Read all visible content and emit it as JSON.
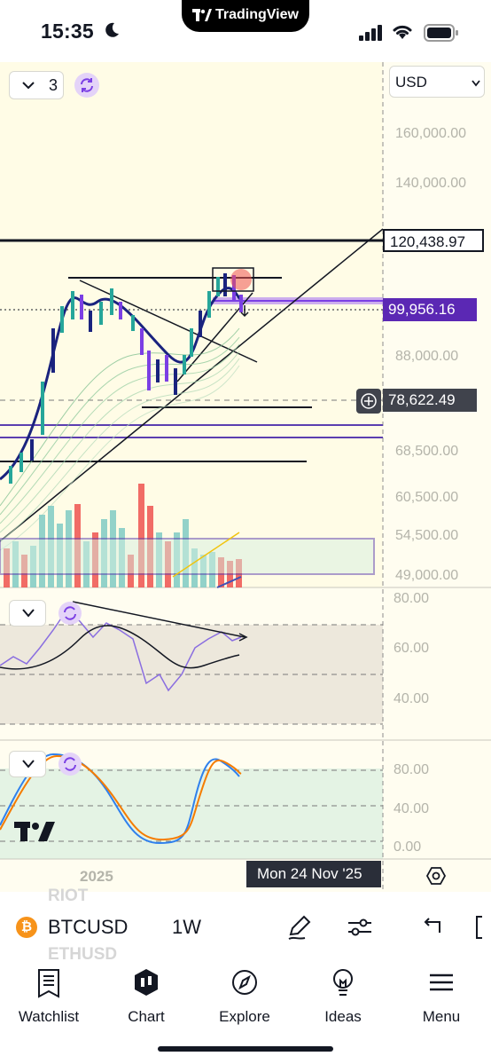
{
  "status_bar": {
    "time": "15:35"
  },
  "island": {
    "label": "TradingView"
  },
  "toolbar": {
    "interval_count": "3",
    "currency": "USD"
  },
  "price_axis": {
    "ticks": [
      "160,000.00",
      "140,000.00",
      "88,000.00",
      "68,500.00",
      "60,500.00",
      "54,500.00",
      "49,000.00"
    ],
    "resistance_label": "120,438.97",
    "last_price_label": "99,956.16",
    "crosshair_label": "78,622.49"
  },
  "rsi_pane": {
    "ticks": [
      "80.00",
      "60.00",
      "40.00"
    ]
  },
  "stoch_pane": {
    "ticks": [
      "80.00",
      "40.00",
      "0.00"
    ]
  },
  "time_axis": {
    "year": "2025",
    "cursor_date": "Mon 24 Nov '25"
  },
  "symbol_bar": {
    "ghost_above": "RIOT",
    "ghost_below": "ETHUSD",
    "coin_glyph": "₿",
    "symbol": "BTCUSD",
    "interval": "1W"
  },
  "nav": {
    "watchlist": "Watchlist",
    "chart": "Chart",
    "explore": "Explore",
    "ideas": "Ideas",
    "menu": "Menu"
  },
  "colors": {
    "chart_bg": "#fffdf0",
    "bull": "#26a69a",
    "bear": "#ef5350",
    "accent_purple": "#7b3fe4",
    "rsi_line": "#8a6ee0",
    "stoch_k": "#2f80ed",
    "stoch_d": "#f57c00"
  }
}
